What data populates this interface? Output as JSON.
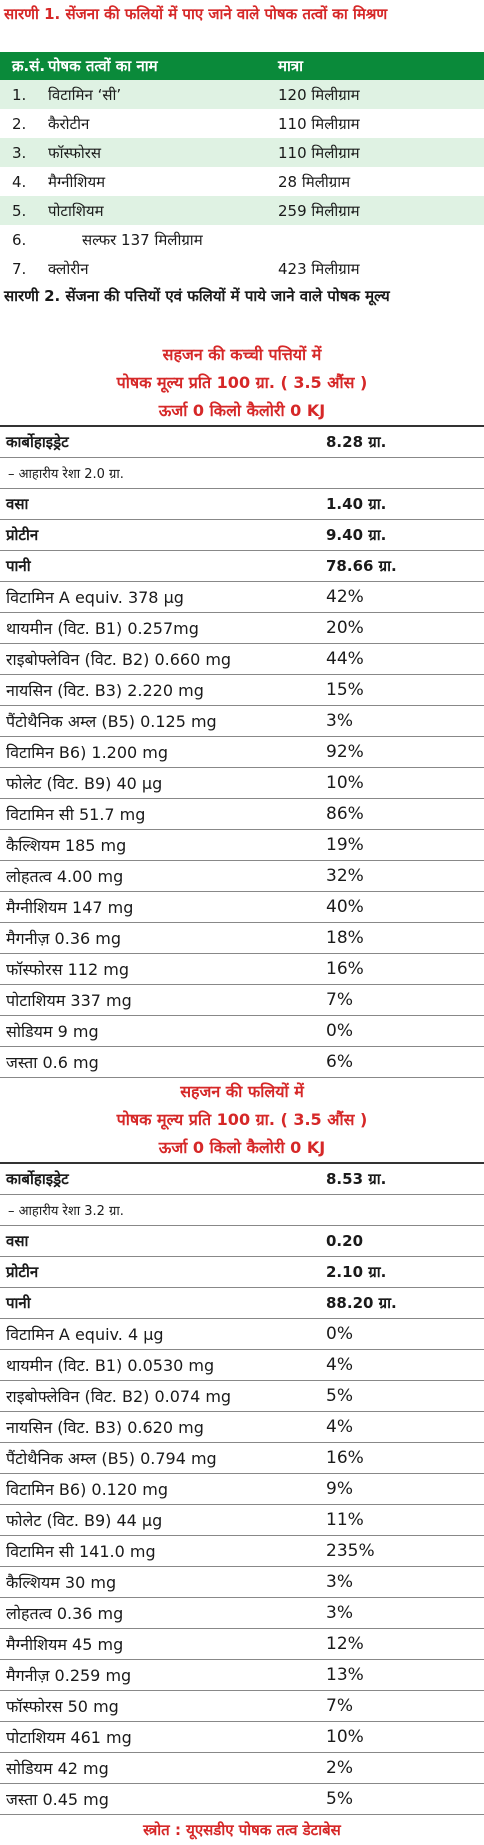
{
  "table1": {
    "title": "सारणी 1. सेंजना की फलियों में पाए जाने वाले पोषक तत्वों का मिश्रण",
    "headers": [
      "क्र.सं.",
      "पोषक तत्वों का नाम",
      "मात्रा"
    ],
    "rows": [
      [
        "1.",
        "विटामिन ‘सी’",
        "120 मिलीग्राम"
      ],
      [
        "2.",
        "कैरोटीन",
        "110 मिलीग्राम"
      ],
      [
        "3.",
        "फॉस्फोरस",
        "110 मिलीग्राम"
      ],
      [
        "4.",
        "मैग्नीशियम",
        "28 मिलीग्राम"
      ],
      [
        "5.",
        "पोटाशियम",
        "259 मिलीग्राम"
      ],
      [
        "6.",
        "सल्फर   137 मिलीग्राम",
        ""
      ],
      [
        "7.",
        "क्लोरीन",
        "423 मिलीग्राम"
      ]
    ]
  },
  "table2": {
    "title": "सारणी 2. सेंजना की पत्तियों एवं फलियों में पाये जाने वाले पोषक मूल्य",
    "sections": [
      {
        "heading": [
          "सहजन की कच्ची पत्तियों में",
          "पोषक मूल्य प्रति 100 ग्रा. ( 3.5 औंस )",
          "ऊर्जा 0 किलो कैलोरी 0 KJ"
        ],
        "rows": [
          [
            "कार्बोहाइड्रेट",
            "8.28 ग्रा."
          ],
          [
            "– आहारीय रेशा 2.0 ग्रा.",
            ""
          ],
          [
            "वसा",
            "1.40 ग्रा."
          ],
          [
            "प्रोटीन",
            "9.40 ग्रा."
          ],
          [
            "पानी",
            "78.66 ग्रा."
          ],
          [
            "विटामिन A equiv. 378 μg",
            "42%"
          ],
          [
            "थायमीन (विट. B1) 0.257mg",
            "20%"
          ],
          [
            "राइबोफ्लेविन (विट. B2) 0.660 mg",
            "44%"
          ],
          [
            "नायसिन (विट. B3) 2.220 mg",
            "15%"
          ],
          [
            "पैंटोथैनिक अम्ल (B5) 0.125 mg",
            "3%"
          ],
          [
            "विटामिन B6) 1.200 mg",
            "92%"
          ],
          [
            "फोलेट (विट. B9) 40 μg",
            "10%"
          ],
          [
            "विटामिन सी 51.7 mg",
            "86%"
          ],
          [
            "कैल्शियम 185 mg",
            "19%"
          ],
          [
            "लोहतत्व 4.00 mg",
            "32%"
          ],
          [
            "मैग्नीशियम 147 mg",
            "40%"
          ],
          [
            "मैगनीज़ 0.36 mg",
            "18%"
          ],
          [
            "फॉस्फोरस 112 mg",
            "16%"
          ],
          [
            "पोटाशियम 337 mg",
            "7%"
          ],
          [
            "सोडियम 9 mg",
            "0%"
          ],
          [
            "जस्ता 0.6 mg",
            "6%"
          ]
        ]
      },
      {
        "heading": [
          "सहजन की फलियों में",
          "पोषक मूल्य प्रति 100 ग्रा. ( 3.5 औंस )",
          "ऊर्जा 0 किलो कैलोरी 0 KJ"
        ],
        "rows": [
          [
            "कार्बोहाइड्रेट",
            "8.53 ग्रा."
          ],
          [
            "– आहारीय रेशा 3.2 ग्रा.",
            ""
          ],
          [
            "वसा",
            "0.20"
          ],
          [
            "प्रोटीन",
            "2.10 ग्रा."
          ],
          [
            "पानी",
            "88.20 ग्रा."
          ],
          [
            "विटामिन A equiv. 4 μg",
            "0%"
          ],
          [
            "थायमीन (विट. B1) 0.0530 mg",
            "4%"
          ],
          [
            "राइबोफ्लेविन (विट. B2) 0.074 mg",
            "5%"
          ],
          [
            "नायसिन (विट. B3) 0.620 mg",
            "4%"
          ],
          [
            "पैंटोथैनिक अम्ल (B5) 0.794 mg",
            "16%"
          ],
          [
            "विटामिन B6) 0.120 mg",
            "9%"
          ],
          [
            "फोलेट (विट. B9) 44 μg",
            "11%"
          ],
          [
            "विटामिन सी 141.0 mg",
            "235%"
          ],
          [
            "कैल्शियम 30 mg",
            "3%"
          ],
          [
            "लोहतत्व 0.36 mg",
            "3%"
          ],
          [
            "मैग्नीशियम 45 mg",
            "12%"
          ],
          [
            "मैगनीज़ 0.259 mg",
            "13%"
          ],
          [
            "फॉस्फोरस 50 mg",
            "7%"
          ],
          [
            "पोटाशियम 461 mg",
            "10%"
          ],
          [
            "सोडियम 42 mg",
            "2%"
          ],
          [
            "जस्ता 0.45 mg",
            "5%"
          ]
        ]
      }
    ]
  },
  "source": "स्त्रोत : यूएसडीए पोषक तत्व डेटाबेस"
}
